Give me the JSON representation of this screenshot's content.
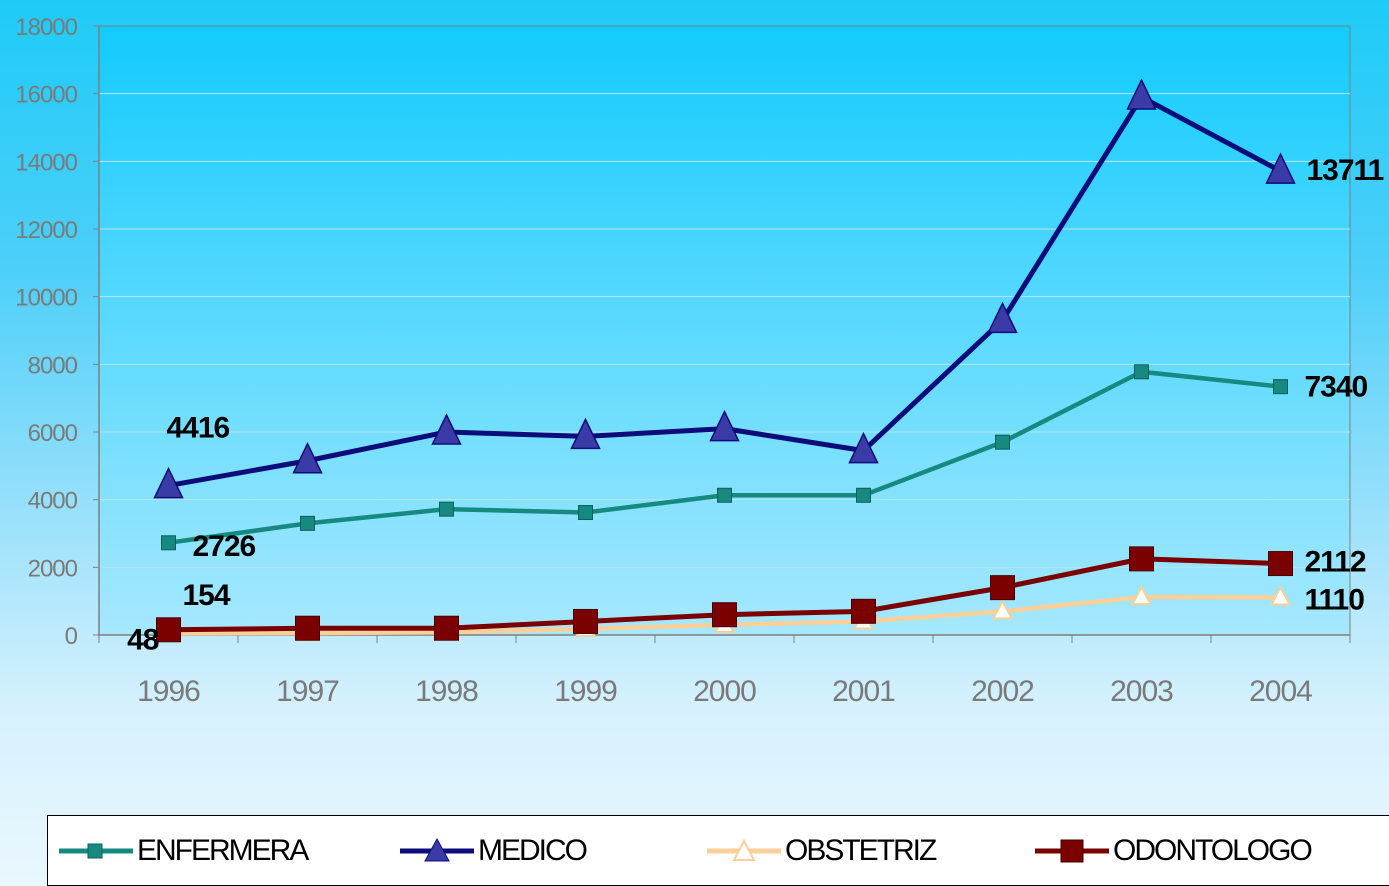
{
  "chart_data": {
    "type": "line",
    "title": "",
    "xlabel": "",
    "ylabel": "",
    "categories": [
      "1996",
      "1997",
      "1998",
      "1999",
      "2000",
      "2001",
      "2002",
      "2003",
      "2004"
    ],
    "ylim": [
      0,
      18000
    ],
    "yticks": [
      "0",
      "2000",
      "4000",
      "6000",
      "8000",
      "10000",
      "12000",
      "14000",
      "16000",
      "18000"
    ],
    "grid": "horizontal",
    "legend_position": "bottom",
    "series": [
      {
        "name": "ENFERMERA",
        "color": "#168a80",
        "marker": "square-filled",
        "values": [
          2726,
          3300,
          3720,
          3620,
          4130,
          4130,
          5700,
          7780,
          7340
        ]
      },
      {
        "name": "MEDICO",
        "color": "#0c0c7a",
        "marker": "triangle-filled",
        "values": [
          4416,
          5150,
          6000,
          5870,
          6100,
          5450,
          9300,
          15900,
          13711
        ]
      },
      {
        "name": "OBSTETRIZ",
        "color": "#fbcf98",
        "marker": "triangle-open",
        "values": [
          48,
          60,
          80,
          180,
          300,
          400,
          700,
          1120,
          1110
        ]
      },
      {
        "name": "ODONTOLOGO",
        "color": "#7b0000",
        "marker": "square-filled",
        "values": [
          154,
          200,
          200,
          400,
          600,
          700,
          1400,
          2250,
          2112
        ]
      }
    ],
    "data_labels": [
      {
        "text": "4416",
        "series": 1,
        "index": 0
      },
      {
        "text": "13711",
        "series": 1,
        "index": 8
      },
      {
        "text": "2726",
        "series": 0,
        "index": 0
      },
      {
        "text": "7340",
        "series": 0,
        "index": 8
      },
      {
        "text": "154",
        "series": 3,
        "index": 0
      },
      {
        "text": "2112",
        "series": 3,
        "index": 8
      },
      {
        "text": "48",
        "series": 2,
        "index": 0
      },
      {
        "text": "1110",
        "series": 2,
        "index": 8
      }
    ]
  },
  "legend": {
    "items": [
      {
        "name": "ENFERMERA",
        "marker": "square-filled",
        "color": "#168a80"
      },
      {
        "name": "MEDICO",
        "marker": "triangle-filled",
        "color": "#0c0c7a"
      },
      {
        "name": "OBSTETRIZ",
        "marker": "triangle-open",
        "color": "#fbcf98"
      },
      {
        "name": "ODONTOLOGO",
        "marker": "square-filled",
        "color": "#7b0000"
      }
    ]
  }
}
